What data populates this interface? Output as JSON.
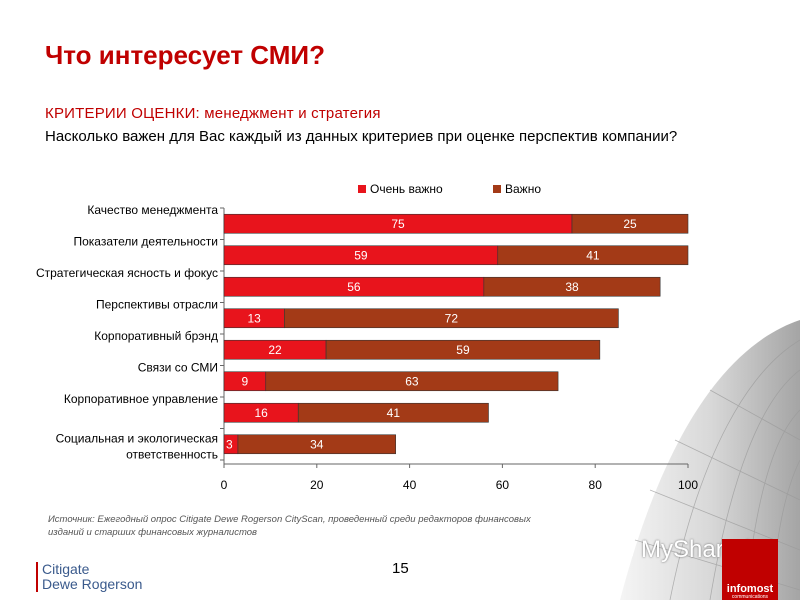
{
  "header": {
    "title": "Что интересует СМИ?",
    "subtitle": "КРИТЕРИИ ОЦЕНКИ: менеджмент и стратегия",
    "question": "Насколько важен для Вас каждый из данных критериев при оценке перспектив компании?"
  },
  "chart_data": {
    "type": "bar",
    "orientation": "horizontal",
    "stacked": true,
    "categories": [
      "Качество менеджмента",
      "Показатели деятельности",
      "Стратегическая ясность и фокус",
      "Перспективы отрасли",
      "Корпоративный брэнд",
      "Связи со СМИ",
      "Корпоративное управление",
      "Социальная и экологическая ответственность"
    ],
    "series": [
      {
        "name": "Очень важно",
        "color": "#e8141c",
        "values": [
          75,
          59,
          56,
          13,
          22,
          9,
          16,
          3
        ]
      },
      {
        "name": "Важно",
        "color": "#a33a17",
        "values": [
          25,
          41,
          38,
          72,
          59,
          63,
          41,
          34
        ]
      }
    ],
    "xlim": [
      0,
      100
    ],
    "xticks": [
      "0",
      "20",
      "40",
      "60",
      "80",
      "100"
    ],
    "grid": false,
    "legend_position": "top"
  },
  "footer": {
    "source": "Источник: Ежегодный опрос Citigate Dewe Rogerson CityScan, проведенный среди редакторов финансовых изданий и старших финансовых журналистов",
    "page_number": "15",
    "logo_line1": "Citigate",
    "logo_line2": "Dewe Rogerson",
    "watermark": "MyShared",
    "badge_main": "infomost",
    "badge_sub": "communications"
  }
}
